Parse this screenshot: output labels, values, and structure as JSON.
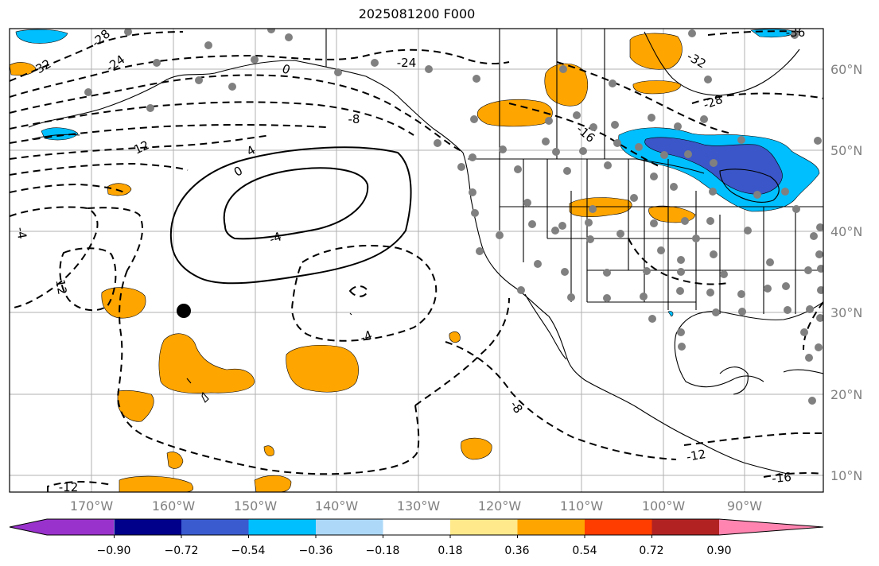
{
  "title": "2025081200 F000",
  "map": {
    "lat_labels": [
      "60°N",
      "50°N",
      "40°N",
      "30°N",
      "20°N",
      "10°N"
    ],
    "lon_labels": [
      "170°W",
      "160°W",
      "150°W",
      "140°W",
      "130°W",
      "120°W",
      "110°W",
      "100°W",
      "90°W"
    ],
    "contour_labels": [
      "-28",
      "32",
      "-24",
      "0",
      "-24",
      "-32",
      "-36",
      "-28",
      "-8",
      "-16",
      "12",
      "4",
      "0",
      "-4",
      "-4",
      "12",
      "-4",
      "-8",
      "-12",
      "-12",
      "-16"
    ],
    "marker": "black-dot",
    "colors": {
      "coast": "#000000",
      "grid": "#b0b0b0",
      "station": "#808080",
      "positive": "#ffa500",
      "negative_light": "#00bfff",
      "negative_dark": "#3a56c8"
    }
  },
  "colorbar": {
    "ticks": [
      "−0.90",
      "−0.72",
      "−0.54",
      "−0.36",
      "−0.18",
      "0.18",
      "0.36",
      "0.54",
      "0.72",
      "0.90"
    ],
    "colors": [
      "#9932cc",
      "#00008b",
      "#3a5bcf",
      "#00bfff",
      "#add8f7",
      "#ffffff",
      "#ffe98a",
      "#ffa500",
      "#ff3d00",
      "#b22222",
      "#ff85b0"
    ]
  }
}
